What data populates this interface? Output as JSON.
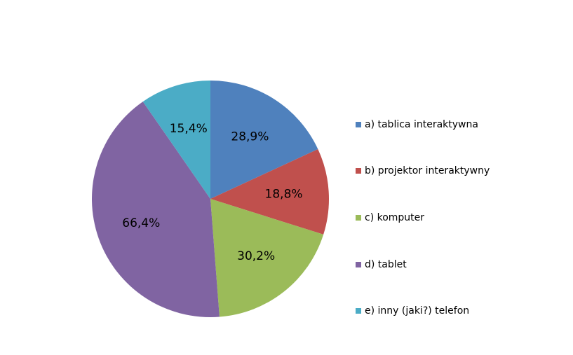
{
  "chart_data": {
    "type": "pie",
    "title": "",
    "slices": [
      {
        "label": "a) tablica interaktywna",
        "value": 28.9,
        "display": "28,9%",
        "color": "#4F81BD"
      },
      {
        "label": "b) projektor interaktywny",
        "value": 18.8,
        "display": "18,8%",
        "color": "#C0504D"
      },
      {
        "label": "c) komputer",
        "value": 30.2,
        "display": "30,2%",
        "color": "#9BBB59"
      },
      {
        "label": "d) tablet",
        "value": 66.4,
        "display": "66,4%",
        "color": "#8064A2"
      },
      {
        "label": "e) inny (jaki?) telefon",
        "value": 15.4,
        "display": "15,4%",
        "color": "#4BACC6"
      }
    ],
    "start_angle_deg": 0,
    "direction": "clockwise",
    "legend_position": "right"
  }
}
